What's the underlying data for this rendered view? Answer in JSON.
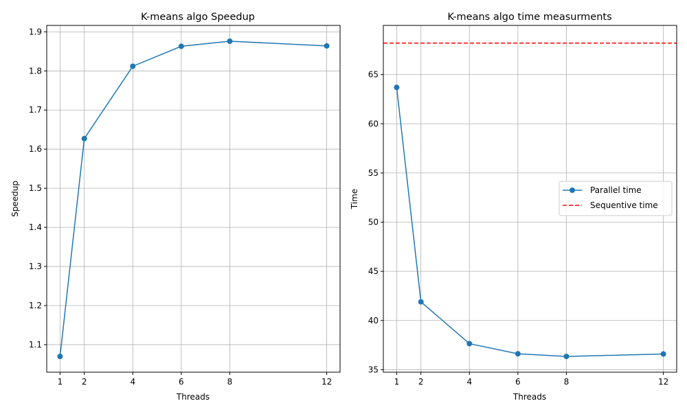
{
  "chart_data": [
    {
      "type": "line",
      "title": "K-means algo Speedup",
      "xlabel": "Threads",
      "ylabel": "Speedup",
      "x": [
        1,
        2,
        4,
        6,
        8,
        12
      ],
      "series": [
        {
          "values": [
            1.07,
            1.627,
            1.812,
            1.863,
            1.876,
            1.864
          ],
          "color": "#1f77b4",
          "marker": "circle"
        }
      ],
      "xticks": [
        1,
        2,
        4,
        6,
        8,
        12
      ],
      "yticks": [
        "1.1",
        "1.2",
        "1.3",
        "1.4",
        "1.5",
        "1.6",
        "1.7",
        "1.8",
        "1.9"
      ],
      "xlim": [
        0.45,
        12.55
      ],
      "ylim": [
        1.0297,
        1.9164
      ],
      "grid": true
    },
    {
      "type": "line",
      "title": "K-means algo time measurments",
      "xlabel": "Threads",
      "ylabel": "Time",
      "x": [
        1,
        2,
        4,
        6,
        8,
        12
      ],
      "series": [
        {
          "name": "Parallel time",
          "values": [
            63.7,
            41.9,
            37.65,
            36.62,
            36.35,
            36.6
          ],
          "color": "#1f77b4",
          "marker": "circle",
          "style": "solid"
        },
        {
          "name": "Sequentive time",
          "hline": 68.2,
          "color": "#ff0000",
          "style": "dashed"
        }
      ],
      "xticks": [
        1,
        2,
        4,
        6,
        8,
        12
      ],
      "yticks": [
        "35",
        "40",
        "45",
        "50",
        "55",
        "60",
        "65"
      ],
      "xlim": [
        0.45,
        12.55
      ],
      "ylim": [
        34.75,
        70.0
      ],
      "grid": true,
      "legend_position": "center-right"
    }
  ]
}
